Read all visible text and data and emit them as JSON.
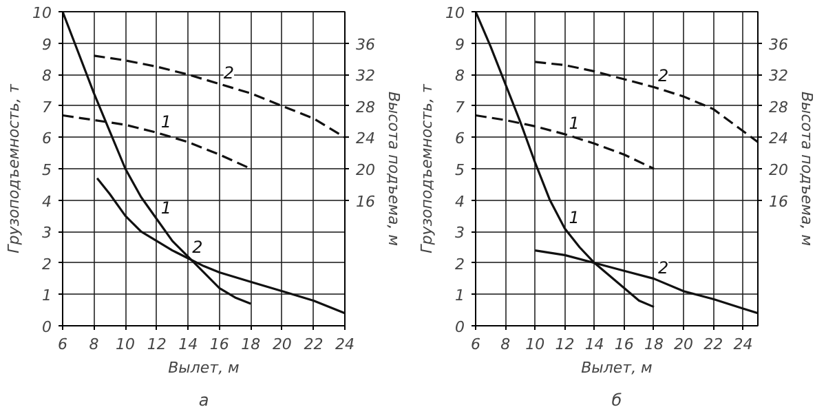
{
  "chart_data": [
    {
      "type": "line",
      "xlabel": "Вылет, м",
      "ylabel": "Грузоподъемность, т",
      "y2label": "Высота подъема, м",
      "annotations": [
        "а"
      ],
      "xlim": [
        6,
        24
      ],
      "xticks": [
        6,
        8,
        10,
        12,
        14,
        16,
        18,
        20,
        22,
        24
      ],
      "ylim": [
        0,
        10
      ],
      "yticks": [
        0,
        1,
        2,
        3,
        4,
        5,
        6,
        7,
        8,
        9,
        10
      ],
      "y2lim": [
        0,
        40
      ],
      "y2ticks": [
        16,
        20,
        24,
        28,
        32,
        36
      ],
      "grid": true,
      "marker": "none",
      "series": [
        {
          "name": "1",
          "color": "#111111",
          "line_style": "solid",
          "x": [
            6,
            7,
            8,
            9,
            10,
            11,
            12,
            13,
            14,
            15,
            16,
            17,
            18
          ],
          "values": [
            10,
            8.7,
            7.4,
            6.2,
            5.0,
            4.1,
            3.4,
            2.7,
            2.2,
            1.7,
            1.2,
            0.9,
            0.7
          ]
        },
        {
          "name": "2",
          "color": "#111111",
          "line_style": "solid",
          "x": [
            8.2,
            9,
            10,
            11,
            12,
            13,
            14,
            15,
            16,
            18,
            20,
            22,
            24
          ],
          "values": [
            4.7,
            4.2,
            3.5,
            3.0,
            2.7,
            2.4,
            2.15,
            1.9,
            1.7,
            1.4,
            1.1,
            0.8,
            0.4
          ]
        },
        {
          "name": "1",
          "color": "#111111",
          "line_style": "dashed",
          "axis": "y2",
          "x": [
            6,
            8,
            10,
            12,
            14,
            16,
            18
          ],
          "values": [
            26.8,
            26.2,
            25.6,
            24.6,
            23.4,
            21.8,
            20
          ]
        },
        {
          "name": "2",
          "color": "#111111",
          "line_style": "dashed",
          "axis": "y2",
          "x": [
            8,
            10,
            12,
            14,
            16,
            18,
            20,
            22,
            24
          ],
          "values": [
            34.4,
            33.8,
            33,
            32,
            30.8,
            29.6,
            28,
            26.4,
            24
          ]
        }
      ]
    },
    {
      "type": "line",
      "xlabel": "Вылет, м",
      "ylabel": "Грузоподъемность, т",
      "y2label": "Высота подъема, м",
      "annotations": [
        "б"
      ],
      "xlim": [
        6,
        25
      ],
      "xticks": [
        6,
        8,
        10,
        12,
        14,
        16,
        18,
        20,
        22,
        24
      ],
      "ylim": [
        0,
        10
      ],
      "yticks": [
        0,
        1,
        2,
        3,
        4,
        5,
        6,
        7,
        8,
        9,
        10
      ],
      "y2lim": [
        0,
        40
      ],
      "y2ticks": [
        16,
        20,
        24,
        28,
        32,
        36
      ],
      "grid": true,
      "marker": "none",
      "series": [
        {
          "name": "1",
          "color": "#111111",
          "line_style": "solid",
          "x": [
            6,
            7,
            8,
            9,
            10,
            11,
            12,
            13,
            14,
            15,
            16,
            17,
            18
          ],
          "values": [
            10,
            8.9,
            7.7,
            6.5,
            5.2,
            4.0,
            3.1,
            2.5,
            2.0,
            1.6,
            1.2,
            0.8,
            0.6
          ]
        },
        {
          "name": "2",
          "color": "#111111",
          "line_style": "solid",
          "x": [
            10,
            12,
            14,
            16,
            18,
            20,
            22,
            24,
            25
          ],
          "values": [
            2.4,
            2.25,
            2.0,
            1.75,
            1.5,
            1.1,
            0.85,
            0.55,
            0.4
          ]
        },
        {
          "name": "1",
          "color": "#111111",
          "line_style": "dashed",
          "axis": "y2",
          "x": [
            6,
            8,
            10,
            12,
            14,
            16,
            18
          ],
          "values": [
            26.8,
            26.2,
            25.4,
            24.4,
            23.2,
            21.8,
            20
          ]
        },
        {
          "name": "2",
          "color": "#111111",
          "line_style": "dashed",
          "axis": "y2",
          "x": [
            10,
            12,
            14,
            16,
            18,
            20,
            22,
            24,
            25
          ],
          "values": [
            33.6,
            33.2,
            32.4,
            31.4,
            30.4,
            29.2,
            27.6,
            24.8,
            23.4
          ]
        }
      ]
    }
  ]
}
